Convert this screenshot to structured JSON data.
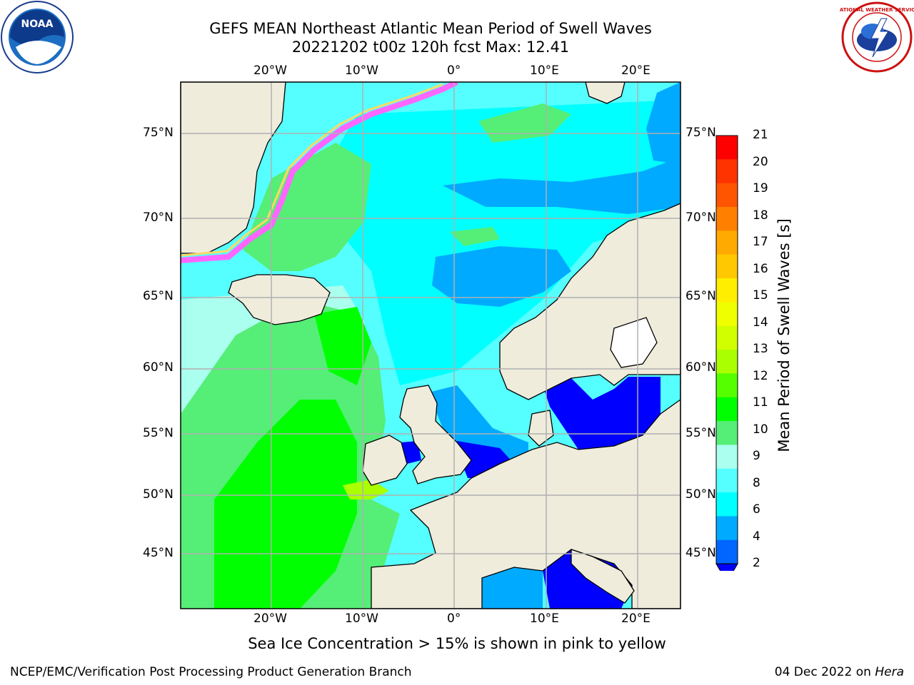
{
  "header": {
    "title_line1": "GEFS MEAN Northeast Atlantic Mean Period of Swell Waves",
    "title_line2": "20221202 t00z 120h fcst   Max: 12.41"
  },
  "map": {
    "lon_labels": [
      "20°W",
      "10°W",
      "0°",
      "10°E",
      "20°E"
    ],
    "lat_labels": [
      "75°N",
      "70°N",
      "65°N",
      "60°N",
      "55°N",
      "50°N",
      "45°N"
    ],
    "colors": {
      "land": "#efecdc",
      "ice_pink": "#ff66ff",
      "ice_yellow": "#ffd966",
      "grid": "#b0b0b0"
    }
  },
  "colorbar": {
    "label": "Mean Period of Swell Waves [s]",
    "ticks": [
      "21",
      "20",
      "19",
      "18",
      "17",
      "16",
      "15",
      "14",
      "13",
      "12",
      "11",
      "10",
      "9",
      "8",
      "6",
      "4",
      "2"
    ],
    "colors": [
      "#ff0000",
      "#ff3300",
      "#ff5500",
      "#ff8000",
      "#ffaa00",
      "#ffc800",
      "#ffee00",
      "#f0ff00",
      "#d2ff00",
      "#aaff00",
      "#55ff00",
      "#00ff00",
      "#55ee77",
      "#aaffee",
      "#55ffff",
      "#00ffff",
      "#00aaff",
      "#0066ff"
    ],
    "extend_color": "#0000ff"
  },
  "note": "Sea Ice Concentration > 15% is shown in pink to yellow",
  "footer": {
    "left": "NCEP/EMC/Verification Post Processing Product Generation Branch",
    "date": "04 Dec 2022 on ",
    "host": "Hera"
  },
  "logos": {
    "noaa": "NOAA",
    "nws": "NATIONAL WEATHER SERVICE"
  }
}
